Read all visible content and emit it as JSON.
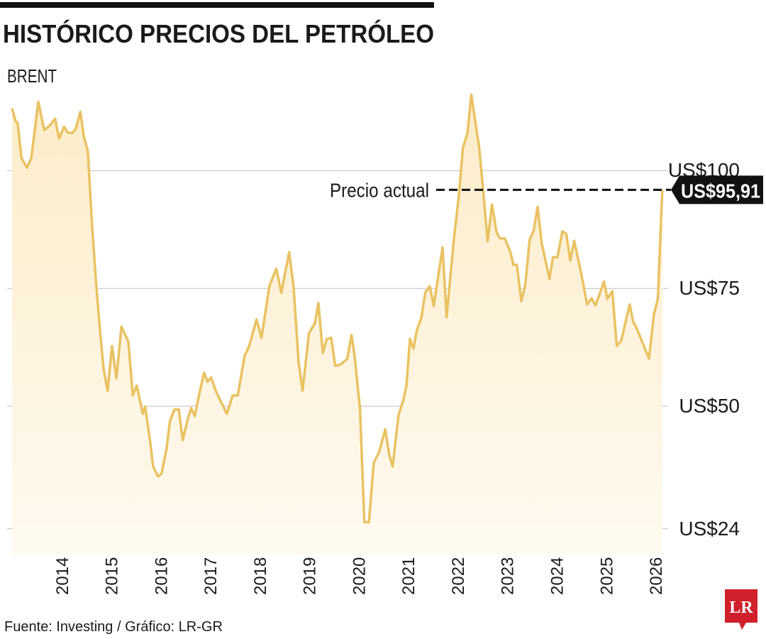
{
  "chart_data": {
    "type": "area-line",
    "title": "HISTÓRICO PRECIOS DEL PETRÓLEO",
    "subtitle": "BRENT",
    "source": "Fuente: Investing / Gráfico: LR-GR",
    "logo": "LR",
    "color": "#e9c262",
    "fill_top": "#fcecc8",
    "fill_bottom": "#fffaf0",
    "grid": true,
    "xlim": [
      2013,
      2026.2
    ],
    "xticks": [
      2014,
      2015,
      2016,
      2017,
      2018,
      2019,
      2020,
      2021,
      2022,
      2023,
      2024,
      2025,
      2026
    ],
    "ylim": [
      18.7,
      116.6
    ],
    "yticks": [
      {
        "value": 24,
        "label": "US$24"
      },
      {
        "value": 50,
        "label": "US$50"
      },
      {
        "value": 75,
        "label": "US$75"
      },
      {
        "value": 100,
        "label": "US$100"
      }
    ],
    "annotation": {
      "text": "Precio actual",
      "value": 95.91,
      "label": "US$95,91"
    },
    "x": [
      2013.0,
      2013.07,
      2013.11,
      2013.19,
      2013.3,
      2013.39,
      2013.53,
      2013.65,
      2013.76,
      2013.87,
      2013.95,
      2014.05,
      2014.13,
      2014.22,
      2014.29,
      2014.38,
      2014.45,
      2014.53,
      2014.62,
      2014.7,
      2014.77,
      2014.85,
      2014.93,
      2015.02,
      2015.11,
      2015.21,
      2015.35,
      2015.44,
      2015.52,
      2015.64,
      2015.69,
      2015.79,
      2015.85,
      2015.95,
      2016.02,
      2016.12,
      2016.19,
      2016.28,
      2016.37,
      2016.45,
      2016.55,
      2016.62,
      2016.69,
      2016.79,
      2016.88,
      2016.95,
      2017.02,
      2017.13,
      2017.34,
      2017.46,
      2017.56,
      2017.7,
      2017.79,
      2017.94,
      2018.04,
      2018.2,
      2018.34,
      2018.44,
      2018.6,
      2018.69,
      2018.79,
      2018.87,
      2019.0,
      2019.12,
      2019.19,
      2019.28,
      2019.36,
      2019.45,
      2019.53,
      2019.63,
      2019.77,
      2019.86,
      2019.92,
      2020.03,
      2020.12,
      2020.21,
      2020.31,
      2020.42,
      2020.54,
      2020.62,
      2020.69,
      2020.81,
      2020.91,
      2020.97,
      2021.04,
      2021.11,
      2021.18,
      2021.27,
      2021.35,
      2021.44,
      2021.52,
      2021.7,
      2021.78,
      2021.93,
      2022.03,
      2022.11,
      2022.2,
      2022.28,
      2022.44,
      2022.53,
      2022.61,
      2022.7,
      2022.79,
      2022.86,
      2022.96,
      2023.07,
      2023.13,
      2023.2,
      2023.29,
      2023.37,
      2023.46,
      2023.54,
      2023.62,
      2023.7,
      2023.86,
      2023.93,
      2024.02,
      2024.12,
      2024.2,
      2024.28,
      2024.36,
      2024.5,
      2024.62,
      2024.71,
      2024.79,
      2024.91,
      2024.96,
      2025.03,
      2025.13,
      2025.22,
      2025.31,
      2025.48,
      2025.55,
      2025.62,
      2025.87,
      2025.97,
      2026.05,
      2026.14
    ],
    "series": [
      {
        "values": [
          113.2,
          110.5,
          110.2,
          102.7,
          100.6,
          102.7,
          114.6,
          108.6,
          109.5,
          111.0,
          106.8,
          109.3,
          108.0,
          108.0,
          108.9,
          112.5,
          107.2,
          104.1,
          88.0,
          75.9,
          66.9,
          57.9,
          53.3,
          62.8,
          55.9,
          66.9,
          63.7,
          52.3,
          54.4,
          48.4,
          49.9,
          42.5,
          37.2,
          35.1,
          35.7,
          40.9,
          46.9,
          49.3,
          49.3,
          42.8,
          47.3,
          49.6,
          47.9,
          52.9,
          57.1,
          55.2,
          56.1,
          52.9,
          48.4,
          52.3,
          52.3,
          60.7,
          62.7,
          68.4,
          64.5,
          75.5,
          79.2,
          74.1,
          82.7,
          75.2,
          59.4,
          53.3,
          65.5,
          67.6,
          71.9,
          61.3,
          64.3,
          64.5,
          58.6,
          58.8,
          60.0,
          65.1,
          60.9,
          49.6,
          25.4,
          25.4,
          38.0,
          40.3,
          45.1,
          39.8,
          37.2,
          48.1,
          51.4,
          54.4,
          64.3,
          62.2,
          66.1,
          68.7,
          74.1,
          75.5,
          71.3,
          83.7,
          68.9,
          85.7,
          94.7,
          104.8,
          107.8,
          116.1,
          104.8,
          94.7,
          85.0,
          92.8,
          86.9,
          85.6,
          85.6,
          82.7,
          80.0,
          80.0,
          72.3,
          75.6,
          85.4,
          87.2,
          92.3,
          84.7,
          77.0,
          81.6,
          81.6,
          87.1,
          86.5,
          80.9,
          85.1,
          78.2,
          71.6,
          72.9,
          71.4,
          74.9,
          76.5,
          72.8,
          74.4,
          62.8,
          63.9,
          71.6,
          68.0,
          66.6,
          60.1,
          69.5,
          72.8,
          95.91
        ]
      }
    ]
  }
}
